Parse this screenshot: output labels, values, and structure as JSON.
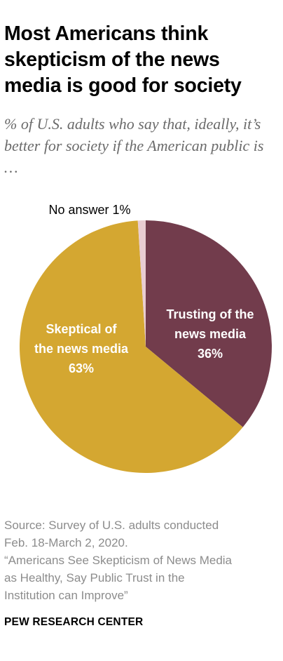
{
  "title": "Most Americans think skepticism of the news media is good for society",
  "subtitle": "% of U.S. adults who say that, ideally, it’s better for society if the American public is …",
  "chart_data": {
    "type": "pie",
    "slices": [
      {
        "label": "Trusting of the news media",
        "value": 36,
        "value_label": "36%",
        "color": "#723c4c"
      },
      {
        "label": "Skeptical of the news media",
        "value": 63,
        "value_label": "63%",
        "color": "#d4a731"
      },
      {
        "label": "No answer",
        "value": 1,
        "value_label": "1%",
        "color": "#e9cdd2"
      }
    ]
  },
  "source": {
    "line1": "Source: Survey of U.S. adults conducted",
    "line2": "Feb. 18-March 2, 2020.",
    "line3": "“Americans See Skepticism of News Media",
    "line4": "as Healthy, Say Public Trust in the",
    "line5": "Institution can Improve”"
  },
  "brand": "PEW RESEARCH CENTER"
}
